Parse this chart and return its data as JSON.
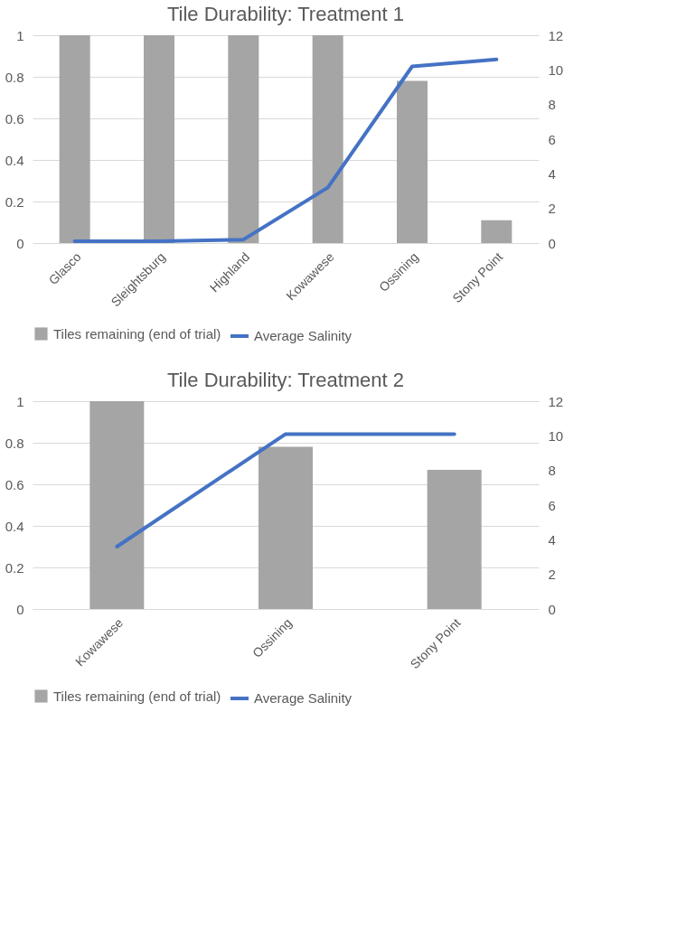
{
  "chart_data": [
    {
      "type": "bar",
      "title": "Tile Durability: Treatment 1",
      "categories": [
        "Glasco",
        "Sleightsburg",
        "Highland",
        "Kowawese",
        "Ossining",
        "Stony Point"
      ],
      "series": [
        {
          "name": "Tiles remaining (end of trial)",
          "color": "#a5a5a5",
          "values": [
            1,
            1,
            1,
            1,
            0.78,
            0.11
          ]
        },
        {
          "name": "Average Salinity",
          "type": "line",
          "axis": "y2",
          "color": "#4472c4",
          "values": [
            0.1,
            0.1,
            0.2,
            3.2,
            10.2,
            10.6
          ]
        }
      ],
      "ylim": [
        0,
        1
      ],
      "yticks": [
        0,
        0.2,
        0.4,
        0.6,
        0.8,
        1
      ],
      "y2lim": [
        0,
        12
      ],
      "y2ticks": [
        0,
        2,
        4,
        6,
        8,
        10,
        12
      ],
      "grid": "y",
      "legend": "bottom",
      "marker": "none"
    },
    {
      "type": "bar",
      "title": "Tile Durability: Treatment 2",
      "categories": [
        "Kowawese",
        "Ossining",
        "Stony Point"
      ],
      "series": [
        {
          "name": "Tiles remaining (end of trial)",
          "color": "#a5a5a5",
          "values": [
            1,
            0.78,
            0.67
          ]
        },
        {
          "name": "Average Salinity",
          "type": "line",
          "axis": "y2",
          "color": "#4472c4",
          "values": [
            3.6,
            10.1,
            10.1
          ]
        }
      ],
      "ylim": [
        0,
        1
      ],
      "yticks": [
        0,
        0.2,
        0.4,
        0.6,
        0.8,
        1
      ],
      "y2lim": [
        0,
        12
      ],
      "y2ticks": [
        0,
        2,
        4,
        6,
        8,
        10,
        12
      ],
      "grid": "y",
      "legend": "bottom",
      "marker": "none"
    }
  ]
}
